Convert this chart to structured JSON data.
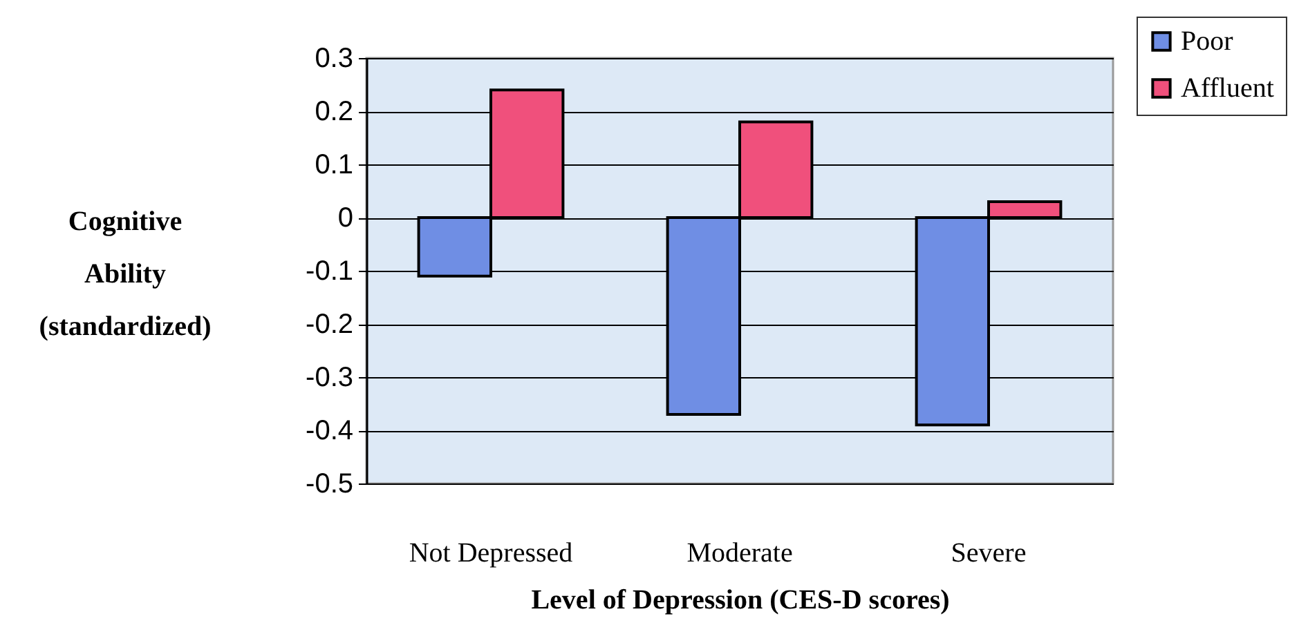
{
  "chart_data": {
    "type": "bar",
    "xlabel": "Level of Depression (CES-D scores)",
    "ylabel": "Cognitive Ability (standardized)",
    "categories": [
      "Not Depressed",
      "Moderate",
      "Severe"
    ],
    "series": [
      {
        "name": "Poor",
        "color": "#6f8ee4",
        "values": [
          -0.11,
          -0.37,
          -0.39
        ]
      },
      {
        "name": "Affluent",
        "color": "#f0507c",
        "values": [
          0.24,
          0.18,
          0.03
        ]
      }
    ],
    "ylim": [
      -0.5,
      0.3
    ],
    "yticks": [
      -0.5,
      -0.4,
      -0.3,
      -0.2,
      -0.1,
      0,
      0.1,
      0.2,
      0.3
    ],
    "grid": "y",
    "legend": "top right"
  }
}
